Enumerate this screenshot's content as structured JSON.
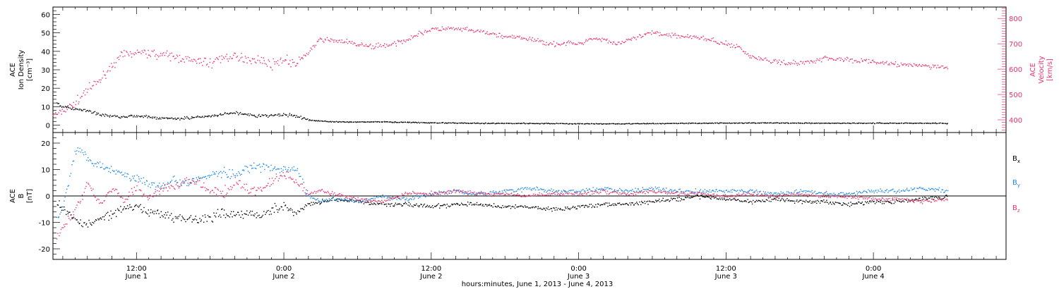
{
  "chart_data": {
    "type": "scatter",
    "xlabel": "hours:minutes, June  1, 2013 - June  4, 2013",
    "colors": {
      "black": "#000000",
      "blue": "#1e88e5",
      "pink": "#e8336b"
    },
    "x_ticks": [
      {
        "hour": 12,
        "time": "12:00",
        "day": "June 1"
      },
      {
        "hour": 24,
        "time": "0:00",
        "day": "June 2"
      },
      {
        "hour": 36,
        "time": "12:00",
        "day": "June 2"
      },
      {
        "hour": 48,
        "time": "0:00",
        "day": "June 3"
      },
      {
        "hour": 60,
        "time": "12:00",
        "day": "June 3"
      },
      {
        "hour": 72,
        "time": "0:00",
        "day": "June 4"
      }
    ],
    "x_range_hours": [
      5.2,
      82.8
    ],
    "panels": [
      {
        "name": "top",
        "ylabel_left": [
          "ACE",
          "Ion Density",
          "[cm⁻³]"
        ],
        "ylabel_right": [
          "ACE",
          "Velocity",
          "[km/s]"
        ],
        "y_left_range": [
          -4,
          64
        ],
        "y_left_ticks": [
          0,
          10,
          20,
          30,
          40,
          50,
          60
        ],
        "y_right_range": [
          350,
          845
        ],
        "y_right_ticks": [
          400,
          500,
          600,
          700,
          800
        ],
        "series": [
          {
            "name": "Ion Density",
            "axis": "left",
            "color": "#000000",
            "points": [
              [
                5.5,
                12
              ],
              [
                6,
                10
              ],
              [
                7,
                9
              ],
              [
                8,
                8
              ],
              [
                9,
                6
              ],
              [
                10,
                5
              ],
              [
                12,
                5
              ],
              [
                14,
                4
              ],
              [
                16,
                4
              ],
              [
                18,
                5
              ],
              [
                19,
                6
              ],
              [
                20,
                7
              ],
              [
                21,
                6
              ],
              [
                22,
                5
              ],
              [
                24,
                6
              ],
              [
                25,
                5
              ],
              [
                26,
                3
              ],
              [
                28,
                2
              ],
              [
                30,
                2
              ],
              [
                32,
                2
              ],
              [
                34,
                1.8
              ],
              [
                36,
                1.5
              ],
              [
                40,
                1.2
              ],
              [
                44,
                1.2
              ],
              [
                48,
                1
              ],
              [
                52,
                1
              ],
              [
                56,
                1.2
              ],
              [
                60,
                1.4
              ],
              [
                64,
                1.4
              ],
              [
                68,
                1.3
              ],
              [
                72,
                1.3
              ],
              [
                76,
                1.3
              ],
              [
                78,
                1.2
              ]
            ]
          },
          {
            "name": "Velocity",
            "axis": "right",
            "color": "#e8336b",
            "points": [
              [
                5.2,
                420
              ],
              [
                6,
                440
              ],
              [
                7,
                470
              ],
              [
                8,
                520
              ],
              [
                9,
                560
              ],
              [
                10,
                620
              ],
              [
                11,
                660
              ],
              [
                12,
                670
              ],
              [
                14,
                660
              ],
              [
                16,
                640
              ],
              [
                18,
                625
              ],
              [
                19,
                650
              ],
              [
                20,
                645
              ],
              [
                22,
                640
              ],
              [
                23,
                620
              ],
              [
                24,
                640
              ],
              [
                25,
                620
              ],
              [
                26,
                670
              ],
              [
                27,
                720
              ],
              [
                29,
                710
              ],
              [
                31,
                690
              ],
              [
                33,
                700
              ],
              [
                35,
                740
              ],
              [
                36,
                760
              ],
              [
                38,
                760
              ],
              [
                40,
                750
              ],
              [
                42,
                730
              ],
              [
                44,
                720
              ],
              [
                46,
                700
              ],
              [
                47,
                705
              ],
              [
                48,
                700
              ],
              [
                49,
                725
              ],
              [
                50,
                720
              ],
              [
                51,
                700
              ],
              [
                52,
                715
              ],
              [
                54,
                745
              ],
              [
                56,
                735
              ],
              [
                58,
                725
              ],
              [
                60,
                700
              ],
              [
                61,
                690
              ],
              [
                62,
                650
              ],
              [
                64,
                630
              ],
              [
                66,
                625
              ],
              [
                68,
                645
              ],
              [
                70,
                640
              ],
              [
                72,
                630
              ],
              [
                74,
                620
              ],
              [
                76,
                615
              ],
              [
                78,
                610
              ]
            ]
          }
        ]
      },
      {
        "name": "bottom",
        "ylabel_left": [
          "ACE",
          "B",
          "[nT]"
        ],
        "y_range": [
          -24,
          24
        ],
        "y_ticks": [
          -20,
          -10,
          0,
          10,
          20
        ],
        "zero_line": true,
        "legend": [
          {
            "label": "B",
            "sub": "x",
            "color": "#000000"
          },
          {
            "label": "B",
            "sub": "y",
            "color": "#1e88e5"
          },
          {
            "label": "B",
            "sub": "z",
            "color": "#e8336b"
          }
        ],
        "series": [
          {
            "name": "Bx",
            "color": "#000000",
            "points": [
              [
                5.5,
                -2
              ],
              [
                6,
                -5
              ],
              [
                7,
                -9
              ],
              [
                8,
                -11
              ],
              [
                9,
                -8
              ],
              [
                10,
                -7
              ],
              [
                11,
                -5
              ],
              [
                12,
                -4
              ],
              [
                13,
                -6
              ],
              [
                14,
                -7
              ],
              [
                15,
                -8
              ],
              [
                16,
                -8
              ],
              [
                17,
                -9
              ],
              [
                18,
                -8
              ],
              [
                19,
                -6
              ],
              [
                20,
                -7
              ],
              [
                21,
                -6
              ],
              [
                22,
                -7
              ],
              [
                23,
                -5
              ],
              [
                24,
                -4
              ],
              [
                25,
                -6
              ],
              [
                26,
                -3
              ],
              [
                27,
                -2
              ],
              [
                28,
                -1
              ],
              [
                30,
                -2
              ],
              [
                32,
                -3
              ],
              [
                34,
                -3
              ],
              [
                36,
                -4
              ],
              [
                38,
                -3
              ],
              [
                40,
                -3
              ],
              [
                42,
                -4
              ],
              [
                44,
                -4
              ],
              [
                46,
                -5
              ],
              [
                48,
                -4
              ],
              [
                50,
                -3
              ],
              [
                52,
                -3
              ],
              [
                54,
                -2
              ],
              [
                56,
                -1
              ],
              [
                58,
                0
              ],
              [
                60,
                -1
              ],
              [
                62,
                -2
              ],
              [
                64,
                -1
              ],
              [
                66,
                -2
              ],
              [
                68,
                -2
              ],
              [
                70,
                -3
              ],
              [
                72,
                -2
              ],
              [
                74,
                -2
              ],
              [
                76,
                -1
              ],
              [
                78,
                0
              ]
            ]
          },
          {
            "name": "By",
            "color": "#1e88e5",
            "points": [
              [
                5.5,
                -8
              ],
              [
                6,
                -4
              ],
              [
                7,
                18
              ],
              [
                8,
                15
              ],
              [
                9,
                12
              ],
              [
                10,
                10
              ],
              [
                11,
                8
              ],
              [
                12,
                7
              ],
              [
                13,
                5
              ],
              [
                14,
                4
              ],
              [
                15,
                6
              ],
              [
                16,
                5
              ],
              [
                17,
                7
              ],
              [
                18,
                8
              ],
              [
                19,
                9
              ],
              [
                20,
                8
              ],
              [
                21,
                10
              ],
              [
                22,
                11
              ],
              [
                23,
                11
              ],
              [
                24,
                10
              ],
              [
                25,
                10
              ],
              [
                26,
                0
              ],
              [
                27,
                -2
              ],
              [
                28,
                -1
              ],
              [
                30,
                -2
              ],
              [
                32,
                0
              ],
              [
                34,
                -1
              ],
              [
                36,
                1
              ],
              [
                38,
                2
              ],
              [
                40,
                1
              ],
              [
                42,
                2
              ],
              [
                44,
                3
              ],
              [
                46,
                2
              ],
              [
                48,
                2
              ],
              [
                50,
                3
              ],
              [
                52,
                2
              ],
              [
                54,
                3
              ],
              [
                56,
                2
              ],
              [
                58,
                2
              ],
              [
                60,
                2
              ],
              [
                62,
                2
              ],
              [
                64,
                1
              ],
              [
                66,
                2
              ],
              [
                68,
                1
              ],
              [
                70,
                1
              ],
              [
                72,
                2
              ],
              [
                74,
                2
              ],
              [
                76,
                3
              ],
              [
                78,
                2
              ]
            ]
          },
          {
            "name": "Bz",
            "color": "#e8336b",
            "points": [
              [
                5.5,
                -15
              ],
              [
                6,
                -12
              ],
              [
                7,
                -5
              ],
              [
                8,
                5
              ],
              [
                9,
                -3
              ],
              [
                10,
                3
              ],
              [
                11,
                -2
              ],
              [
                12,
                4
              ],
              [
                13,
                -1
              ],
              [
                14,
                3
              ],
              [
                15,
                4
              ],
              [
                16,
                6
              ],
              [
                17,
                5
              ],
              [
                18,
                2
              ],
              [
                19,
                1
              ],
              [
                20,
                5
              ],
              [
                21,
                3
              ],
              [
                22,
                2
              ],
              [
                23,
                6
              ],
              [
                24,
                9
              ],
              [
                25,
                5
              ],
              [
                26,
                1
              ],
              [
                27,
                2
              ],
              [
                28,
                1
              ],
              [
                30,
                -1
              ],
              [
                32,
                -2
              ],
              [
                34,
                1
              ],
              [
                36,
                1
              ],
              [
                38,
                2
              ],
              [
                40,
                1
              ],
              [
                42,
                1
              ],
              [
                44,
                0
              ],
              [
                46,
                1
              ],
              [
                48,
                1
              ],
              [
                50,
                2
              ],
              [
                52,
                1
              ],
              [
                54,
                2
              ],
              [
                56,
                1
              ],
              [
                58,
                1
              ],
              [
                60,
                0
              ],
              [
                62,
                1
              ],
              [
                64,
                0
              ],
              [
                66,
                1
              ],
              [
                68,
                0
              ],
              [
                70,
                0
              ],
              [
                72,
                -1
              ],
              [
                74,
                -1
              ],
              [
                76,
                -2
              ],
              [
                78,
                -1
              ]
            ]
          }
        ]
      }
    ]
  }
}
